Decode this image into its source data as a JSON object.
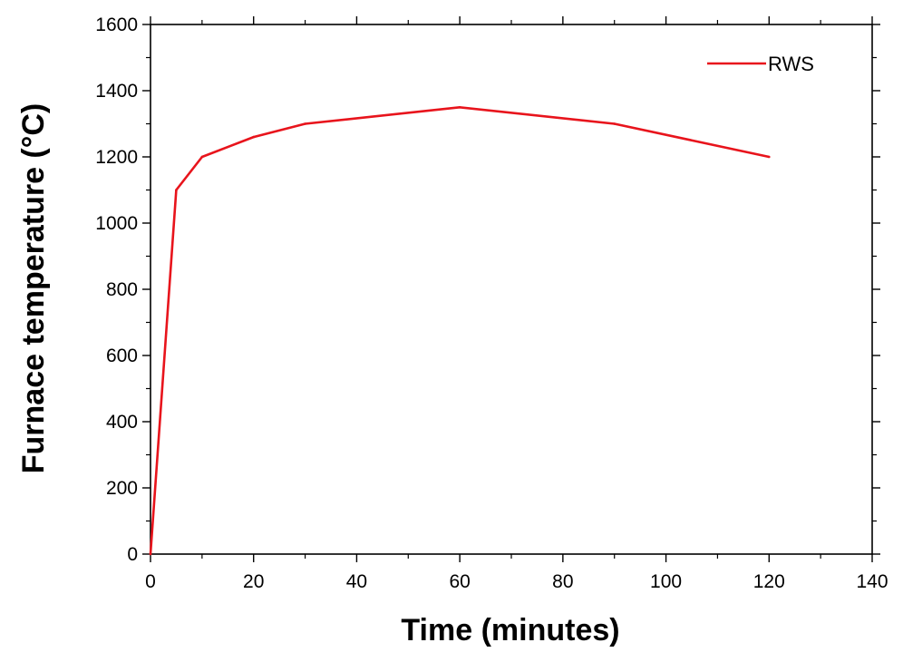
{
  "chart_data": {
    "type": "line",
    "title": "",
    "xlabel": "Time (minutes)",
    "ylabel": "Furnace temperature (°C)",
    "xlim": [
      0,
      140
    ],
    "ylim": [
      0,
      1600
    ],
    "xticks": [
      0,
      20,
      40,
      60,
      80,
      100,
      120,
      140
    ],
    "yticks": [
      0,
      200,
      400,
      600,
      800,
      1000,
      1200,
      1400,
      1600
    ],
    "grid": false,
    "legend_position": "top-right",
    "series": [
      {
        "name": "RWS",
        "color": "#e8141c",
        "x": [
          0,
          5,
          10,
          20,
          30,
          60,
          90,
          120
        ],
        "y": [
          0,
          1100,
          1200,
          1260,
          1300,
          1350,
          1300,
          1200
        ]
      }
    ]
  }
}
